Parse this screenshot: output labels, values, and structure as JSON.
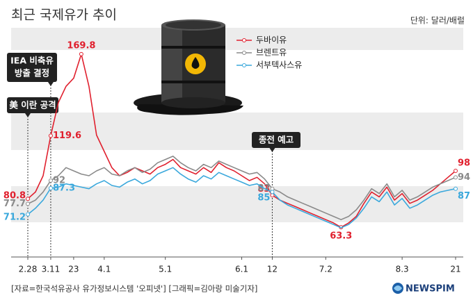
{
  "chart_data": {
    "type": "line",
    "title": "최근 국제유가 추이",
    "unit": "단위: 달러/배럴",
    "categories": [
      "2.28",
      null,
      null,
      "3.11",
      null,
      null,
      "23",
      null,
      null,
      null,
      "4.1",
      null,
      null,
      null,
      null,
      null,
      null,
      null,
      "5.1",
      null,
      null,
      null,
      null,
      null,
      null,
      null,
      null,
      null,
      "6.1",
      null,
      null,
      null,
      "12",
      null,
      null,
      null,
      null,
      null,
      null,
      "7.2",
      null,
      null,
      null,
      null,
      null,
      null,
      null,
      null,
      null,
      "8.3",
      null,
      null,
      null,
      null,
      null,
      null,
      "21"
    ],
    "series": [
      {
        "name": "두바이유",
        "color": "#e0202e",
        "labeled": [
          0,
          3,
          7,
          32,
          41,
          56
        ],
        "values": [
          80.8,
          85,
          95,
          119.6,
          140,
          150,
          155,
          169.8,
          150,
          120,
          110,
          100,
          95,
          97,
          100,
          98,
          96,
          100,
          102,
          105,
          100,
          98,
          96,
          100,
          97,
          103,
          100,
          98,
          95,
          92,
          94,
          90,
          83,
          80,
          78,
          76,
          74,
          72,
          70,
          68,
          66,
          63.3,
          66,
          70,
          78,
          85,
          82,
          88,
          80,
          84,
          78,
          80,
          83,
          86,
          90,
          94,
          98
        ]
      },
      {
        "name": "브렌트유",
        "color": "#8a8a8a",
        "labeled": [
          0,
          3,
          32,
          56
        ],
        "values": [
          77.7,
          80,
          85,
          92,
          95,
          100,
          98,
          96,
          95,
          98,
          100,
          96,
          95,
          98,
          100,
          97,
          99,
          103,
          105,
          107,
          103,
          100,
          98,
          102,
          100,
          104,
          102,
          100,
          98,
          96,
          97,
          93,
          87,
          85,
          82,
          80,
          78,
          76,
          74,
          72,
          70,
          68,
          70,
          74,
          80,
          87,
          84,
          90,
          82,
          86,
          80,
          82,
          85,
          88,
          90,
          92,
          94
        ]
      },
      {
        "name": "서부텍사스유",
        "color": "#3aa8dc",
        "labeled": [
          0,
          3,
          32,
          56
        ],
        "values": [
          71.2,
          75,
          80,
          87.3,
          88,
          90,
          89,
          88,
          87,
          90,
          92,
          89,
          88,
          91,
          93,
          90,
          92,
          96,
          98,
          100,
          96,
          93,
          91,
          95,
          93,
          97,
          95,
          93,
          91,
          89,
          90,
          87,
          85,
          80,
          77,
          75,
          73,
          71,
          69,
          67,
          65,
          63,
          65,
          69,
          75,
          82,
          79,
          85,
          77,
          81,
          75,
          77,
          80,
          83,
          85,
          86,
          87
        ]
      }
    ],
    "ylim": [
      45,
      186
    ],
    "annotations": [
      {
        "lines": [
          "IEA 비축유",
          "방출 결정"
        ]
      },
      {
        "lines": [
          "美 이란 공격"
        ]
      },
      {
        "lines": [
          "종전 예고"
        ]
      }
    ],
    "source": "[자료=한국석유공사 유가정보시스템 '오피넷'] [그래픽=김아랑 미술기자]",
    "brand": "NEWSPIM"
  }
}
